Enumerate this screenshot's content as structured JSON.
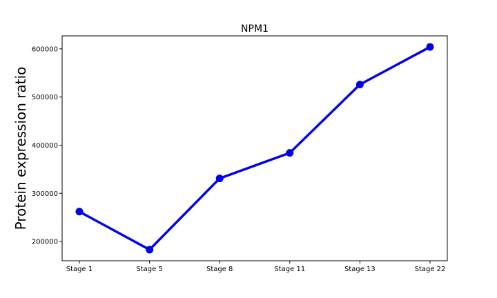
{
  "chart_data": {
    "type": "line",
    "title": "NPM1",
    "xlabel": "",
    "ylabel": "Protein expression ratio",
    "categories": [
      "Stage 1",
      "Stage 5",
      "Stage 8",
      "Stage 11",
      "Stage 13",
      "Stage 22"
    ],
    "series": [
      {
        "values": [
          262000,
          183000,
          331000,
          384000,
          526000,
          604000
        ]
      }
    ],
    "yticks": [
      200000,
      300000,
      400000,
      500000,
      600000
    ],
    "ylim": [
      160000,
      627000
    ],
    "grid": false,
    "colors": {
      "line": "#0000ee",
      "marker": "#0000ee"
    }
  }
}
